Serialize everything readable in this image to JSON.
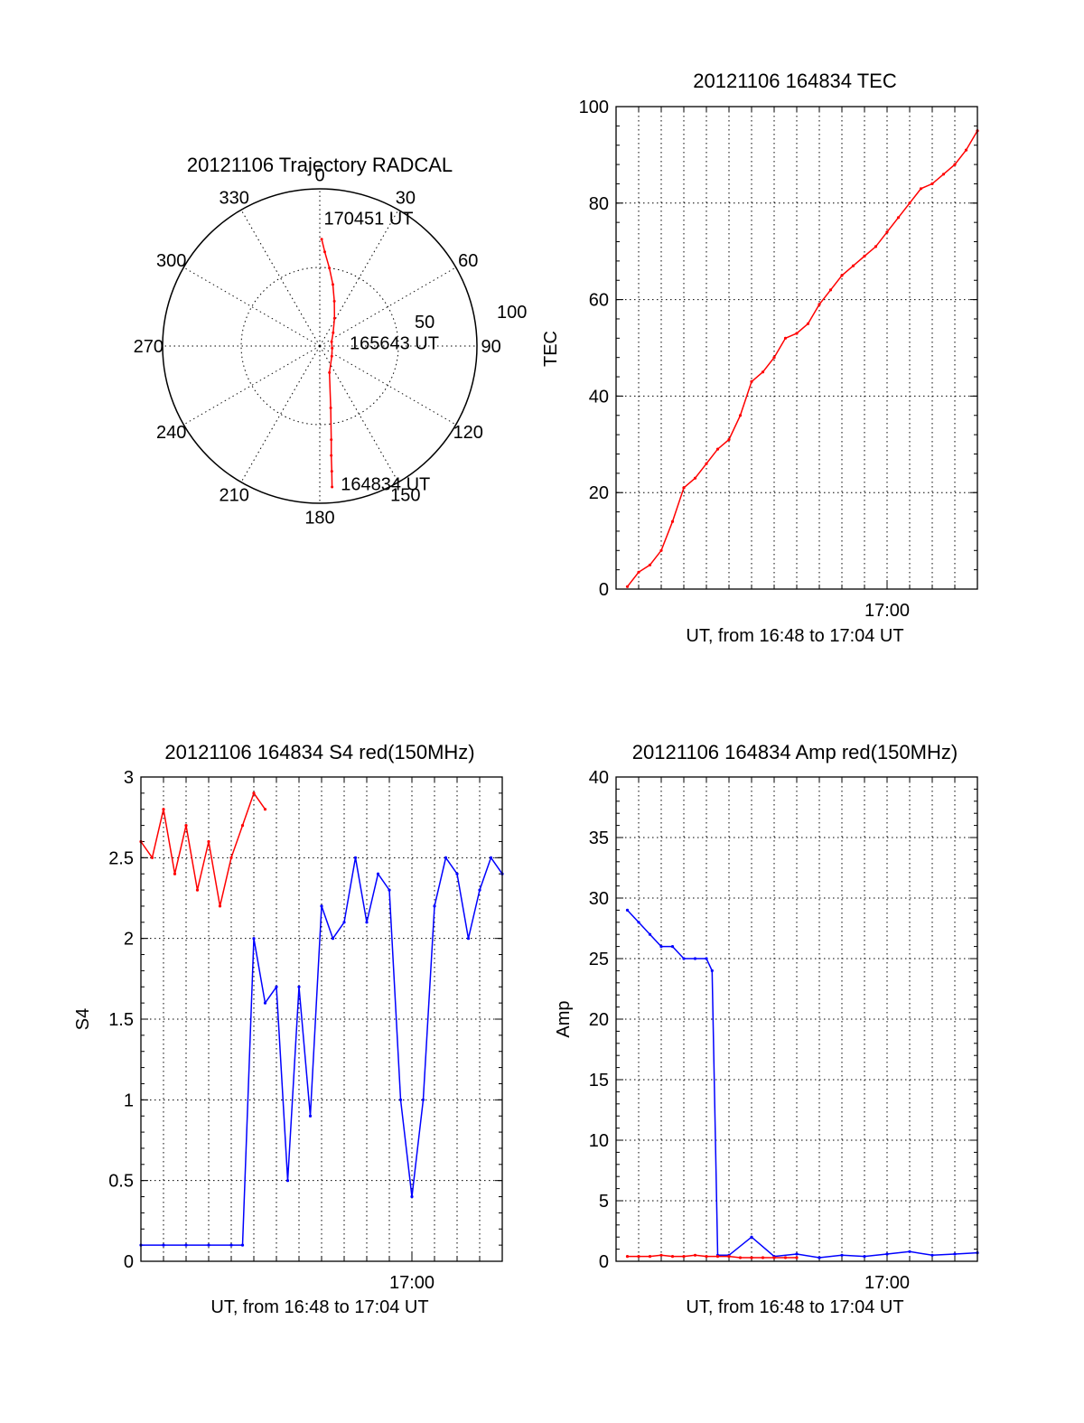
{
  "chart_data": [
    {
      "id": "trajectory",
      "type": "polar",
      "title": "20121106 Trajectory RADCAL",
      "angle_labels": [
        "0",
        "30",
        "60",
        "90",
        "120",
        "150",
        "180",
        "210",
        "240",
        "270",
        "300",
        "330"
      ],
      "radial_labels": [
        "50",
        "100"
      ],
      "radial_range": [
        0,
        100
      ],
      "series": [
        {
          "color": "#ff0000",
          "points": [
            [
              1,
              68
            ],
            [
              3,
              60
            ],
            [
              7,
              50
            ],
            [
              12,
              40
            ],
            [
              18,
              30
            ],
            [
              28,
              20
            ],
            [
              45,
              12
            ],
            [
              70,
              8
            ],
            [
              100,
              8
            ],
            [
              130,
              10
            ],
            [
              160,
              18
            ],
            [
              170,
              40
            ],
            [
              173,
              60
            ],
            [
              174,
              70
            ],
            [
              174.5,
              80
            ],
            [
              175,
              90
            ]
          ]
        }
      ],
      "annotations": [
        {
          "text": "170451 UT",
          "angle": 1,
          "radius": 82
        },
        {
          "text": "165643 UT",
          "angle": 82,
          "radius": 18
        },
        {
          "text": "164834 UT",
          "angle": 172,
          "radius": 88
        }
      ]
    },
    {
      "id": "tec",
      "type": "line",
      "title": "20121106 164834 TEC",
      "ylabel": "TEC",
      "xlabel": "UT, from 16:48 to 17:04 UT",
      "xtick_labels": [
        "17:00"
      ],
      "xlim": [
        "16:48",
        "17:04"
      ],
      "ylim": [
        0,
        100
      ],
      "yticks": [
        0,
        20,
        40,
        60,
        80,
        100
      ],
      "grid": true,
      "series": [
        {
          "color": "#ff0000",
          "x": [
            "16:48:30",
            "16:49:00",
            "16:49:30",
            "16:50:00",
            "16:50:30",
            "16:51:00",
            "16:51:30",
            "16:52:00",
            "16:52:30",
            "16:53:00",
            "16:53:30",
            "16:54:00",
            "16:54:30",
            "16:55:00",
            "16:55:30",
            "16:56:00",
            "16:56:30",
            "16:57:00",
            "16:57:30",
            "16:58:00",
            "16:58:30",
            "16:59:00",
            "16:59:30",
            "17:00:00",
            "17:00:30",
            "17:01:00",
            "17:01:30",
            "17:02:00",
            "17:02:30",
            "17:03:00",
            "17:03:30",
            "17:04:00"
          ],
          "y": [
            0.5,
            3.5,
            5,
            8,
            14,
            21,
            23,
            26,
            29,
            31,
            36,
            43,
            45,
            48,
            52,
            53,
            55,
            59,
            62,
            65,
            67,
            69,
            71,
            74,
            77,
            80,
            83,
            84,
            86,
            88,
            91,
            95
          ]
        }
      ]
    },
    {
      "id": "s4",
      "type": "line",
      "title": "20121106 164834 S4 red(150MHz)",
      "ylabel": "S4",
      "xlabel": "UT, from 16:48 to 17:04 UT",
      "xtick_labels": [
        "17:00"
      ],
      "xlim": [
        "16:48",
        "17:04"
      ],
      "ylim": [
        0,
        3
      ],
      "yticks": [
        0,
        0.5,
        1,
        1.5,
        2,
        2.5,
        3
      ],
      "grid": true,
      "series": [
        {
          "color": "#0000ff",
          "x": [
            "16:48:00",
            "16:49:00",
            "16:50:00",
            "16:51:00",
            "16:52:00",
            "16:52:30",
            "16:53:00",
            "16:53:30",
            "16:54:00",
            "16:54:30",
            "16:55:00",
            "16:55:30",
            "16:56:00",
            "16:56:30",
            "16:57:00",
            "16:57:30",
            "16:58:00",
            "16:58:30",
            "16:59:00",
            "16:59:30",
            "17:00:00",
            "17:00:30",
            "17:01:00",
            "17:01:30",
            "17:02:00",
            "17:02:30",
            "17:03:00",
            "17:03:30",
            "17:04:00"
          ],
          "y": [
            0.1,
            0.1,
            0.1,
            0.1,
            0.1,
            0.1,
            2.0,
            1.6,
            1.7,
            0.5,
            1.7,
            0.9,
            2.2,
            2.0,
            2.1,
            2.5,
            2.1,
            2.4,
            2.3,
            1.0,
            0.4,
            1.0,
            2.2,
            2.5,
            2.4,
            2.0,
            2.3,
            2.5,
            2.4
          ]
        },
        {
          "color": "#ff0000",
          "x": [
            "16:48:00",
            "16:48:30",
            "16:49:00",
            "16:49:30",
            "16:50:00",
            "16:50:30",
            "16:51:00",
            "16:51:30",
            "16:52:00",
            "16:52:30",
            "16:53:00",
            "16:53:30"
          ],
          "y": [
            2.6,
            2.5,
            2.8,
            2.4,
            2.7,
            2.3,
            2.6,
            2.2,
            2.5,
            2.7,
            2.9,
            2.8
          ]
        }
      ]
    },
    {
      "id": "amp",
      "type": "line",
      "title": "20121106 164834 Amp red(150MHz)",
      "ylabel": "Amp",
      "xlabel": "UT, from 16:48 to 17:04 UT",
      "xtick_labels": [
        "17:00"
      ],
      "xlim": [
        "16:48",
        "17:04"
      ],
      "ylim": [
        0,
        40
      ],
      "yticks": [
        0,
        5,
        10,
        15,
        20,
        25,
        30,
        35,
        40
      ],
      "grid": true,
      "series": [
        {
          "color": "#0000ff",
          "x": [
            "16:48:30",
            "16:49:00",
            "16:49:30",
            "16:50:00",
            "16:50:30",
            "16:51:00",
            "16:51:30",
            "16:52:00",
            "16:52:15",
            "16:52:30",
            "16:53:00",
            "16:54:00",
            "16:55:00",
            "16:56:00",
            "16:57:00",
            "16:58:00",
            "16:59:00",
            "17:00:00",
            "17:01:00",
            "17:02:00",
            "17:03:00",
            "17:04:00"
          ],
          "y": [
            29,
            28,
            27,
            26,
            26,
            25,
            25,
            25,
            24,
            0.5,
            0.5,
            2.0,
            0.4,
            0.6,
            0.3,
            0.5,
            0.4,
            0.6,
            0.8,
            0.5,
            0.6,
            0.7
          ]
        },
        {
          "color": "#ff0000",
          "x": [
            "16:48:30",
            "16:49:00",
            "16:49:30",
            "16:50:00",
            "16:50:30",
            "16:51:00",
            "16:51:30",
            "16:52:00",
            "16:52:30",
            "16:53:00",
            "16:53:30",
            "16:54:00",
            "16:54:30",
            "16:55:00",
            "16:55:30",
            "16:56:00"
          ],
          "y": [
            0.4,
            0.4,
            0.4,
            0.5,
            0.4,
            0.4,
            0.5,
            0.4,
            0.4,
            0.4,
            0.3,
            0.3,
            0.3,
            0.3,
            0.3,
            0.3
          ]
        }
      ]
    }
  ]
}
